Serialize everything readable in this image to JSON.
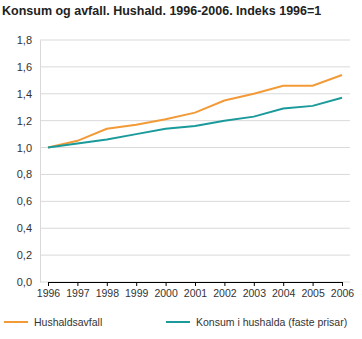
{
  "chart_data": {
    "type": "line",
    "title": "Konsum og avfall. Hushald. 1996-2006. Indeks 1996=1",
    "categories": [
      "1996",
      "1997",
      "1998",
      "1999",
      "2000",
      "2001",
      "2002",
      "2003",
      "2004",
      "2005",
      "2006"
    ],
    "series": [
      {
        "name": "Hushaldsavfall",
        "color": "#f39a38",
        "values": [
          1.0,
          1.05,
          1.14,
          1.17,
          1.21,
          1.26,
          1.35,
          1.4,
          1.46,
          1.46,
          1.54
        ]
      },
      {
        "name": "Konsum i hushalda (faste prisar)",
        "color": "#1a9a9a",
        "values": [
          1.0,
          1.03,
          1.06,
          1.1,
          1.14,
          1.16,
          1.2,
          1.23,
          1.29,
          1.31,
          1.37
        ]
      }
    ],
    "ylim": [
      0,
      1.8
    ],
    "yticks": [
      {
        "value": 0,
        "label": "0,0"
      },
      {
        "value": 0.2,
        "label": "0,2"
      },
      {
        "value": 0.4,
        "label": "0,4"
      },
      {
        "value": 0.6,
        "label": "0,6"
      },
      {
        "value": 0.8,
        "label": "0,8"
      },
      {
        "value": 1.0,
        "label": "1,0"
      },
      {
        "value": 1.2,
        "label": "1,2"
      },
      {
        "value": 1.4,
        "label": "1,4"
      },
      {
        "value": 1.6,
        "label": "1,6"
      },
      {
        "value": 1.8,
        "label": "1,8"
      }
    ],
    "grid": true,
    "legend": "bottom"
  }
}
